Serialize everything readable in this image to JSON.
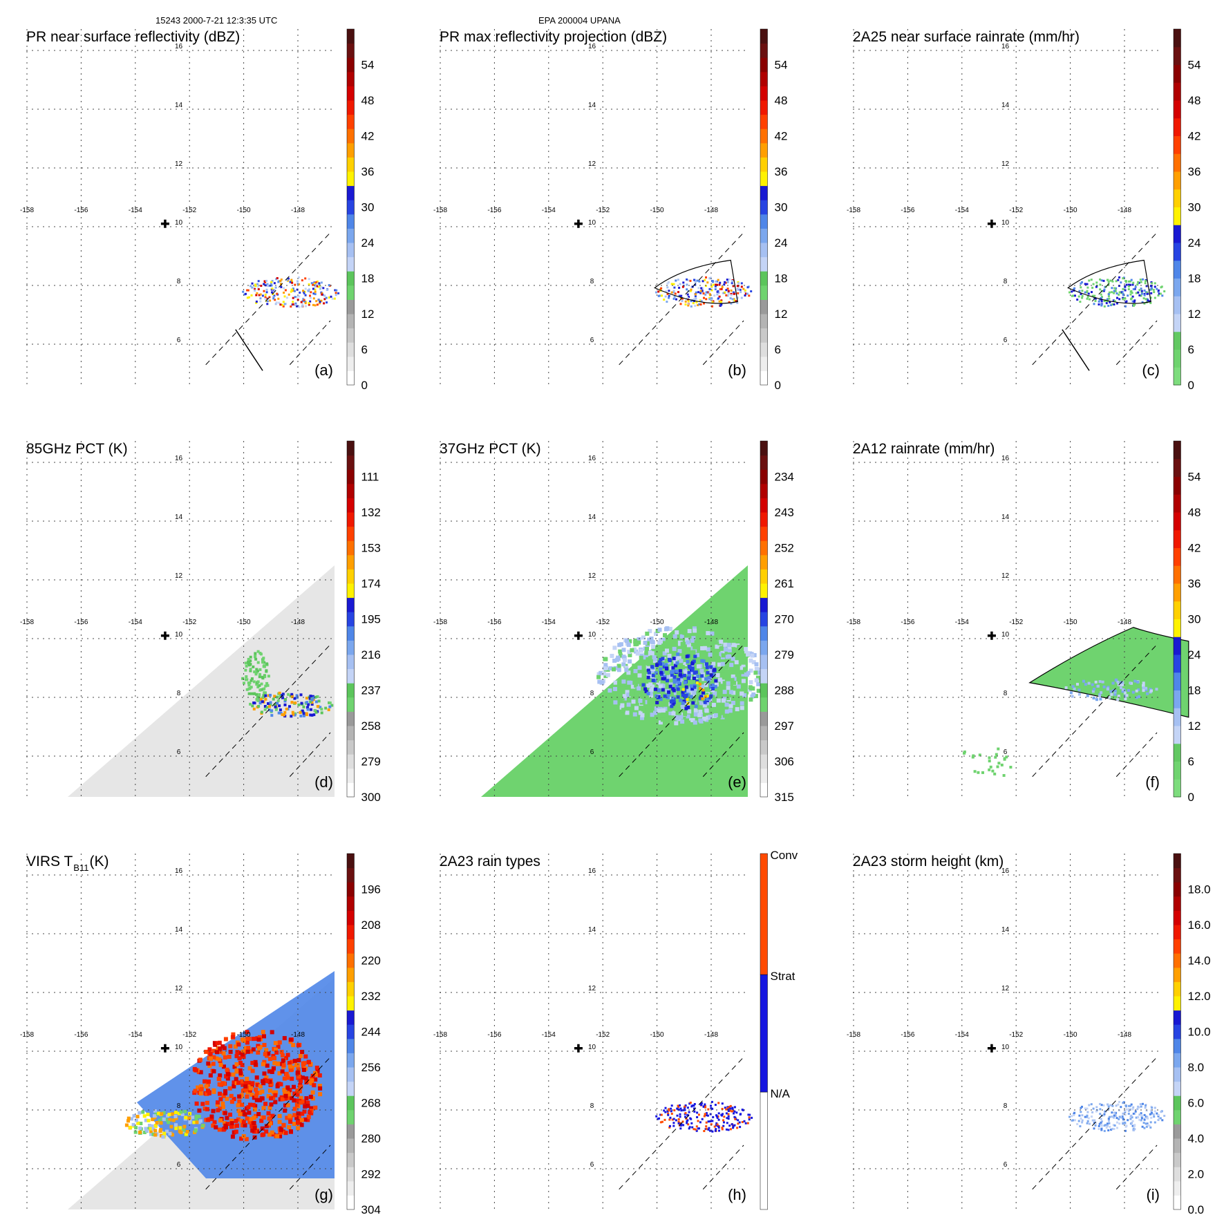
{
  "header": {
    "left": "15243 2000-7-21 12:3:35 UTC",
    "center": "EPA 200004 UPANA"
  },
  "map": {
    "lon_ticks": [
      "-158",
      "-156",
      "-154",
      "-152",
      "-150",
      "-148"
    ],
    "lat_ticks": [
      "16",
      "14",
      "12",
      "10",
      "8",
      "6"
    ],
    "center_marker": "cross-icon"
  },
  "panels": [
    {
      "id": "a",
      "title": "PR near surface reflectivity (dBZ)",
      "letter": "(a)",
      "cbar": [
        "0",
        "6",
        "12",
        "18",
        "24",
        "30",
        "36",
        "42",
        "48",
        "54"
      ],
      "palette": "refl",
      "field": "pr_ns",
      "cross_section": true
    },
    {
      "id": "b",
      "title": "PR max reflectivity projection (dBZ)",
      "letter": "(b)",
      "cbar": [
        "0",
        "6",
        "12",
        "18",
        "24",
        "30",
        "36",
        "42",
        "48",
        "54"
      ],
      "palette": "refl",
      "field": "pr_max",
      "cross_section": false
    },
    {
      "id": "c",
      "title": "2A25 near surface rainrate (mm/hr)",
      "letter": "(c)",
      "cbar": [
        "0",
        "6",
        "12",
        "18",
        "24",
        "30",
        "36",
        "42",
        "48",
        "54"
      ],
      "palette": "rain",
      "field": "rain25",
      "cross_section": true
    },
    {
      "id": "d",
      "title": "85GHz PCT (K)",
      "letter": "(d)",
      "cbar": [
        "300",
        "279",
        "258",
        "237",
        "216",
        "195",
        "174",
        "153",
        "132",
        "111"
      ],
      "palette": "refl",
      "field": "pct85",
      "cross_section": false
    },
    {
      "id": "e",
      "title": "37GHz PCT (K)",
      "letter": "(e)",
      "cbar": [
        "315",
        "306",
        "297",
        "288",
        "279",
        "270",
        "261",
        "252",
        "243",
        "234"
      ],
      "palette": "refl",
      "field": "pct37",
      "cross_section": false
    },
    {
      "id": "f",
      "title": "2A12 rainrate (mm/hr)",
      "letter": "(f)",
      "cbar": [
        "0",
        "6",
        "12",
        "18",
        "24",
        "30",
        "36",
        "42",
        "48",
        "54"
      ],
      "palette": "rain",
      "field": "rain12",
      "cross_section": false
    },
    {
      "id": "g",
      "title": "VIRS T",
      "title_sub": "B11",
      "title_tail": " (K)",
      "letter": "(g)",
      "cbar": [
        "304",
        "292",
        "280",
        "268",
        "256",
        "244",
        "232",
        "220",
        "208",
        "196"
      ],
      "palette": "refl",
      "field": "virs",
      "cross_section": false
    },
    {
      "id": "h",
      "title": "2A23 rain types",
      "letter": "(h)",
      "cbar": [
        "N/A",
        "Strat",
        "Conv"
      ],
      "palette": "types",
      "field": "types",
      "cross_section": false
    },
    {
      "id": "i",
      "title": "2A23 storm height (km)",
      "letter": "(i)",
      "cbar": [
        "0.0",
        "2.0",
        "4.0",
        "6.0",
        "8.0",
        "10.0",
        "12.0",
        "14.0",
        "16.0",
        "18.0"
      ],
      "palette": "refl",
      "field": "height",
      "cross_section": false
    }
  ],
  "colors": {
    "refl": [
      "#ffffff",
      "#eeeeee",
      "#dedede",
      "#c9c9c9",
      "#b4b4b4",
      "#9a9a9a",
      "#6fd36f",
      "#5cc55c",
      "#c4d4f6",
      "#a6c0f2",
      "#7ba7ee",
      "#4f86e8",
      "#2744e2",
      "#1919d2",
      "#fff200",
      "#ffd000",
      "#ff9f00",
      "#ff7000",
      "#ff4000",
      "#f01800",
      "#d40000",
      "#b00000",
      "#8a0000",
      "#6a1010",
      "#4a1010"
    ],
    "rain": [
      "#7ddc7d",
      "#6fd36f",
      "#62c862",
      "#c4d4f6",
      "#a6c0f2",
      "#7ba7ee",
      "#4f86e8",
      "#2744e2",
      "#1919d2",
      "#fff200",
      "#ffd000",
      "#ff9f00",
      "#ff7000",
      "#ff4000",
      "#f01800",
      "#d40000",
      "#b00000",
      "#8a0000",
      "#6a1010",
      "#4a1010"
    ],
    "types": [
      "#ffffff",
      "#1616e0",
      "#ff4a00"
    ]
  }
}
